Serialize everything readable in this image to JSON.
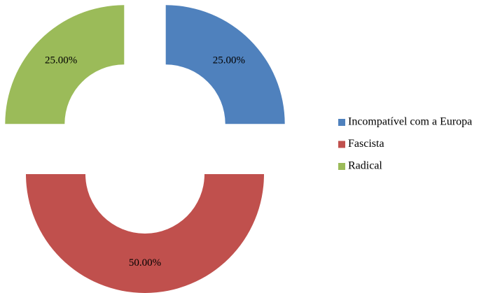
{
  "chart_data": {
    "type": "donut",
    "categories": [
      "Incompatível com a Europa",
      "Fascista",
      "Radical"
    ],
    "values": [
      25,
      50,
      25
    ],
    "value_labels": [
      "25.00%",
      "50.00%",
      "25.00%"
    ],
    "colors": [
      "#4f81bd",
      "#c0504d",
      "#9bbb59"
    ],
    "legend": "right"
  }
}
